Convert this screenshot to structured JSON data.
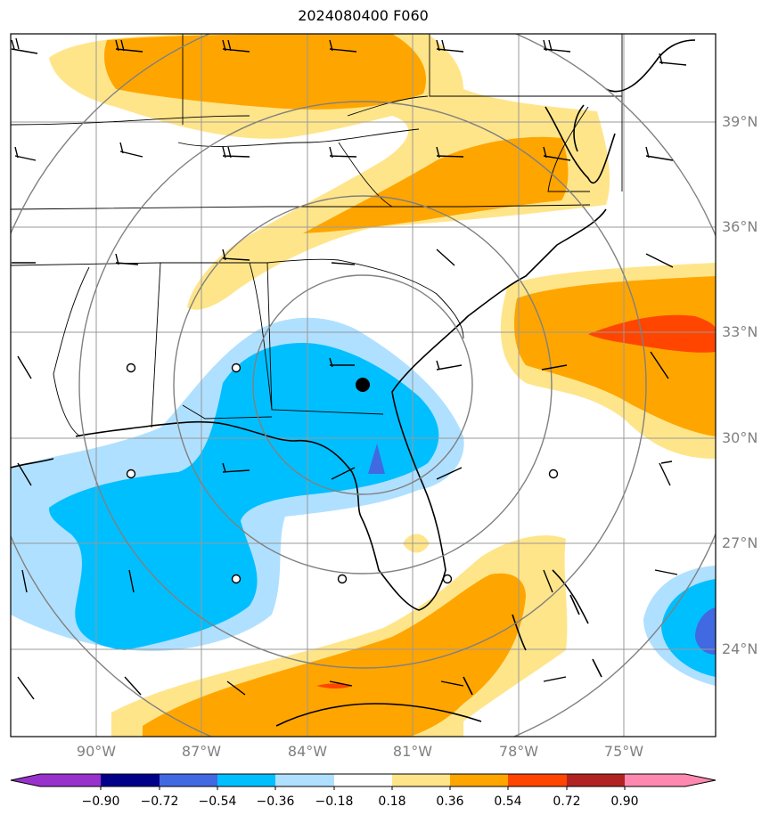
{
  "title": "2024080400 F060",
  "lat_labels": [
    "39°N",
    "36°N",
    "33°N",
    "30°N",
    "27°N",
    "24°N"
  ],
  "lon_labels": [
    "90°W",
    "87°W",
    "84°W",
    "81°W",
    "78°W",
    "75°W"
  ],
  "colorbar": {
    "ticks": [
      "−0.90",
      "−0.72",
      "−0.54",
      "−0.36",
      "−0.18",
      "0.18",
      "0.36",
      "0.54",
      "0.72",
      "0.90"
    ],
    "colors": [
      "#9932cc",
      "#00008b",
      "#4169e1",
      "#00bfff",
      "#b0e0ff",
      "#ffffff",
      "#ffe58a",
      "#ffa500",
      "#ff4500",
      "#b22222",
      "#ff88b0"
    ]
  },
  "colors": {
    "light_blue": "#b0e0ff",
    "blue": "#00bfff",
    "royal_blue": "#4169e1",
    "light_yellow": "#ffe58a",
    "orange": "#ffa500",
    "red_orange": "#ff4500",
    "grid": "#999999",
    "range_rings": "#808080"
  },
  "center_marker": {
    "lat_label": "31.6°N",
    "lon_label": "82.3°W"
  }
}
